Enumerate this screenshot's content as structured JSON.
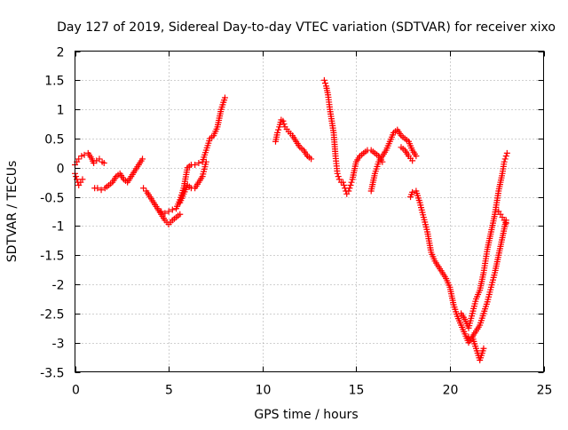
{
  "chart_data": {
    "type": "scatter",
    "title": "Day 127 of 2019, Sidereal Day-to-day VTEC variation (SDTVAR) for receiver xixo",
    "xlabel": "GPS time / hours",
    "ylabel": "SDTVAR / TECUs",
    "xlim": [
      0,
      25
    ],
    "ylim": [
      -3.5,
      2
    ],
    "xticks": [
      "0",
      "5",
      "10",
      "15",
      "20",
      "25"
    ],
    "yticks": [
      "2",
      "1.5",
      "1",
      "0.5",
      "0",
      "-0.5",
      "-1",
      "-1.5",
      "-2",
      "-2.5",
      "-3",
      "-3.5"
    ],
    "grid": true,
    "legend": "none",
    "marker": "plus",
    "color": "#ff0000",
    "series": [
      {
        "x": [
          0.0,
          0.1,
          0.2,
          0.35,
          0.5,
          0.7,
          0.9,
          1.0,
          1.15,
          1.3,
          1.45,
          1.55
        ],
        "y": [
          0.05,
          0.1,
          0.15,
          0.2,
          0.22,
          0.25,
          0.15,
          0.08,
          0.12,
          0.15,
          0.1,
          0.08
        ]
      },
      {
        "x": [
          0.0,
          0.1,
          0.2,
          0.3,
          0.4
        ],
        "y": [
          -0.1,
          -0.2,
          -0.3,
          -0.25,
          -0.2
        ]
      },
      {
        "x": [
          1.05,
          1.2,
          1.4,
          1.6,
          1.8,
          2.0,
          2.2,
          2.4,
          2.6,
          2.8,
          3.0,
          3.2,
          3.4,
          3.6
        ],
        "y": [
          -0.35,
          -0.35,
          -0.38,
          -0.35,
          -0.3,
          -0.25,
          -0.15,
          -0.1,
          -0.2,
          -0.25,
          -0.15,
          -0.05,
          0.05,
          0.15
        ]
      },
      {
        "x": [
          3.65,
          3.8,
          4.0,
          4.2,
          4.4,
          4.6,
          4.8,
          5.0,
          5.2,
          5.4,
          5.6
        ],
        "y": [
          -0.35,
          -0.4,
          -0.5,
          -0.6,
          -0.7,
          -0.8,
          -0.9,
          -0.97,
          -0.9,
          -0.85,
          -0.8
        ]
      },
      {
        "x": [
          4.6,
          4.8,
          5.0,
          5.2,
          5.4,
          5.6,
          5.8,
          6.0,
          6.2,
          6.4,
          6.6,
          6.8,
          7.0,
          7.2,
          7.4,
          7.6,
          7.8,
          8.0
        ],
        "y": [
          -0.75,
          -0.78,
          -0.75,
          -0.72,
          -0.7,
          -0.55,
          -0.35,
          0.0,
          0.05,
          0.05,
          0.08,
          0.1,
          0.3,
          0.5,
          0.55,
          0.7,
          1.0,
          1.2
        ]
      },
      {
        "x": [
          5.6,
          5.8,
          6.0,
          6.2,
          6.4,
          6.6,
          6.8,
          7.0
        ],
        "y": [
          -0.6,
          -0.45,
          -0.3,
          -0.35,
          -0.35,
          -0.25,
          -0.15,
          0.1
        ]
      },
      {
        "x": [
          10.7,
          10.8,
          10.9,
          11.0,
          11.1,
          11.2,
          11.4,
          11.6,
          11.8,
          12.0,
          12.2,
          12.4,
          12.6
        ],
        "y": [
          0.45,
          0.6,
          0.7,
          0.82,
          0.8,
          0.7,
          0.62,
          0.55,
          0.45,
          0.35,
          0.3,
          0.2,
          0.15
        ]
      },
      {
        "x": [
          13.3,
          13.4,
          13.5,
          13.6,
          13.7,
          13.8,
          13.9,
          14.0,
          14.1,
          14.2,
          14.3,
          14.4,
          14.5,
          14.6,
          14.7,
          14.8,
          14.9,
          15.0,
          15.2,
          15.4,
          15.6,
          15.8,
          16.0,
          16.2,
          16.4
        ],
        "y": [
          1.5,
          1.4,
          1.25,
          1.0,
          0.8,
          0.6,
          0.2,
          -0.1,
          -0.2,
          -0.25,
          -0.25,
          -0.35,
          -0.45,
          -0.4,
          -0.3,
          -0.2,
          -0.05,
          0.1,
          0.2,
          0.25,
          0.3,
          0.3,
          0.25,
          0.2,
          0.1
        ]
      },
      {
        "x": [
          15.8,
          16.0,
          16.2,
          16.4,
          16.6,
          16.8,
          17.0,
          17.2,
          17.4,
          17.6,
          17.8,
          18.0,
          18.2
        ],
        "y": [
          -0.4,
          -0.1,
          0.1,
          0.2,
          0.3,
          0.45,
          0.6,
          0.65,
          0.55,
          0.5,
          0.45,
          0.3,
          0.2
        ]
      },
      {
        "x": [
          17.4,
          17.6,
          17.8,
          18.0
        ],
        "y": [
          0.35,
          0.3,
          0.2,
          0.12
        ]
      },
      {
        "x": [
          17.9,
          18.0,
          18.2,
          18.4,
          18.6,
          18.8,
          19.0,
          19.2,
          19.4,
          19.6,
          19.8,
          20.0,
          20.2,
          20.4,
          20.6,
          20.8,
          21.0,
          21.2,
          21.4,
          21.6,
          21.8
        ],
        "y": [
          -0.5,
          -0.42,
          -0.4,
          -0.6,
          -0.85,
          -1.1,
          -1.45,
          -1.6,
          -1.7,
          -1.8,
          -1.9,
          -2.05,
          -2.35,
          -2.55,
          -2.7,
          -2.85,
          -3.0,
          -2.9,
          -3.1,
          -3.3,
          -3.1
        ]
      },
      {
        "x": [
          20.6,
          20.8,
          21.0,
          21.2,
          21.4,
          21.6,
          21.8,
          22.0,
          22.2,
          22.4,
          22.6,
          22.8,
          22.9,
          23.0,
          23.05
        ],
        "y": [
          -2.5,
          -2.6,
          -2.75,
          -2.5,
          -2.25,
          -2.1,
          -1.8,
          -1.4,
          -1.1,
          -0.8,
          -0.4,
          -0.1,
          0.1,
          0.2,
          0.25
        ]
      },
      {
        "x": [
          21.0,
          21.2,
          21.4,
          21.6,
          21.8,
          22.0,
          22.2,
          22.4,
          22.6,
          22.8,
          23.0
        ],
        "y": [
          -2.9,
          -2.9,
          -2.8,
          -2.7,
          -2.5,
          -2.3,
          -2.05,
          -1.8,
          -1.5,
          -1.2,
          -0.9
        ]
      },
      {
        "x": [
          22.6,
          22.7,
          22.8,
          22.9,
          23.0
        ],
        "y": [
          -0.75,
          -0.8,
          -0.85,
          -0.9,
          -0.95
        ]
      }
    ]
  }
}
